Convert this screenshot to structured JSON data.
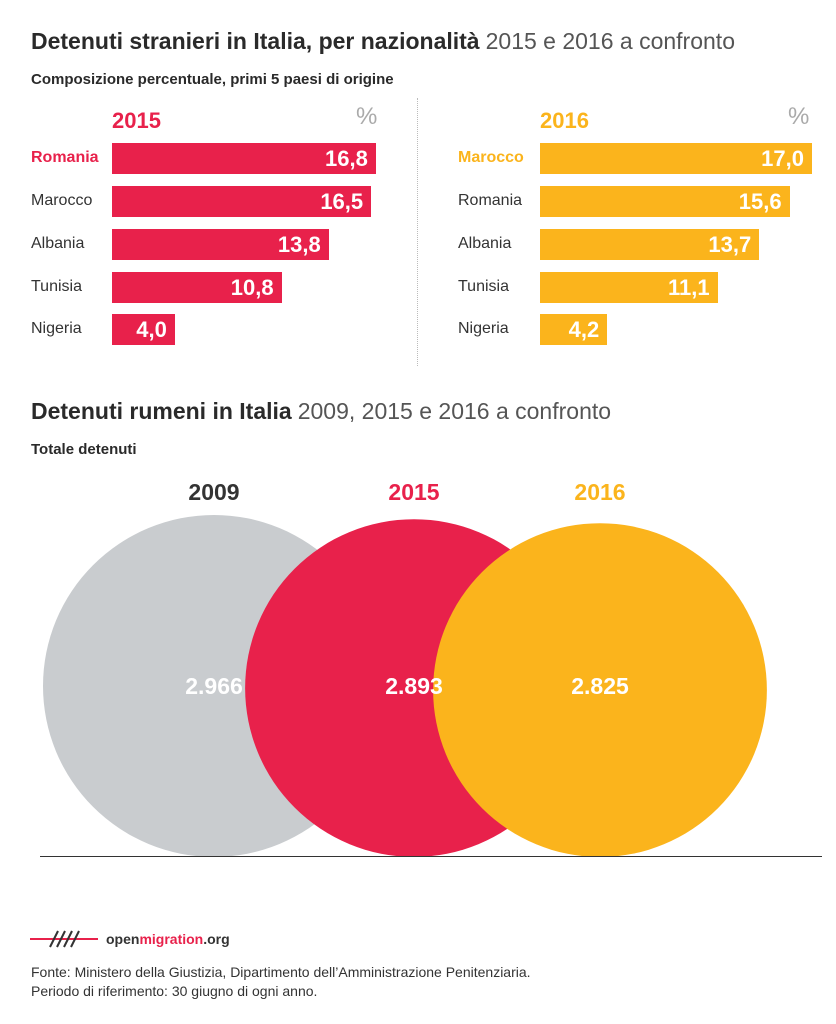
{
  "section1": {
    "title_bold": "Detenuti stranieri in Italia, per nazionalità",
    "title_light": "2015 e 2016 a confronto",
    "subtitle": "Composizione percentuale, primi 5 paesi di origine"
  },
  "section2": {
    "title_bold": "Detenuti rumeni in Italia",
    "title_light": "2009, 2015 e 2016 a confronto",
    "subtitle": "Totale detenuti"
  },
  "colors": {
    "red": "#e8214b",
    "yellow": "#fbb41c",
    "grey": "#c9cccf"
  },
  "chart_data": [
    {
      "type": "bar",
      "orientation": "horizontal",
      "title": "2015",
      "unit_label": "%",
      "color": "#e8214b",
      "highlight": "Romania",
      "categories": [
        "Romania",
        "Marocco",
        "Albania",
        "Tunisia",
        "Nigeria"
      ],
      "values": [
        16.8,
        16.5,
        13.8,
        10.8,
        4.0
      ],
      "labels": [
        "16,8",
        "16,5",
        "13,8",
        "10,8",
        "4,0"
      ],
      "xlim": [
        0,
        17
      ]
    },
    {
      "type": "bar",
      "orientation": "horizontal",
      "title": "2016",
      "unit_label": "%",
      "color": "#fbb41c",
      "highlight": "Marocco",
      "categories": [
        "Marocco",
        "Romania",
        "Albania",
        "Tunisia",
        "Nigeria"
      ],
      "values": [
        17.0,
        15.6,
        13.7,
        11.1,
        4.2
      ],
      "labels": [
        "17,0",
        "15,6",
        "13,7",
        "11,1",
        "4,2"
      ],
      "xlim": [
        0,
        17
      ]
    },
    {
      "type": "bubble",
      "categories": [
        "2009",
        "2015",
        "2016"
      ],
      "values": [
        2966,
        2893,
        2825
      ],
      "labels": [
        "2.966",
        "2.893",
        "2.825"
      ],
      "colors": [
        "#c9cccf",
        "#e8214b",
        "#fbb41c"
      ],
      "label_colors": [
        "#333333",
        "#e8214b",
        "#fbb41c"
      ]
    }
  ],
  "footer": {
    "logo_prefix": "open",
    "logo_accent": "migration",
    "logo_suffix": ".org",
    "source_line1": "Fonte: Ministero della Giustizia, Dipartimento dell’Amministrazione Penitenziaria.",
    "source_line2": "Periodo di riferimento: 30 giugno di ogni anno."
  }
}
